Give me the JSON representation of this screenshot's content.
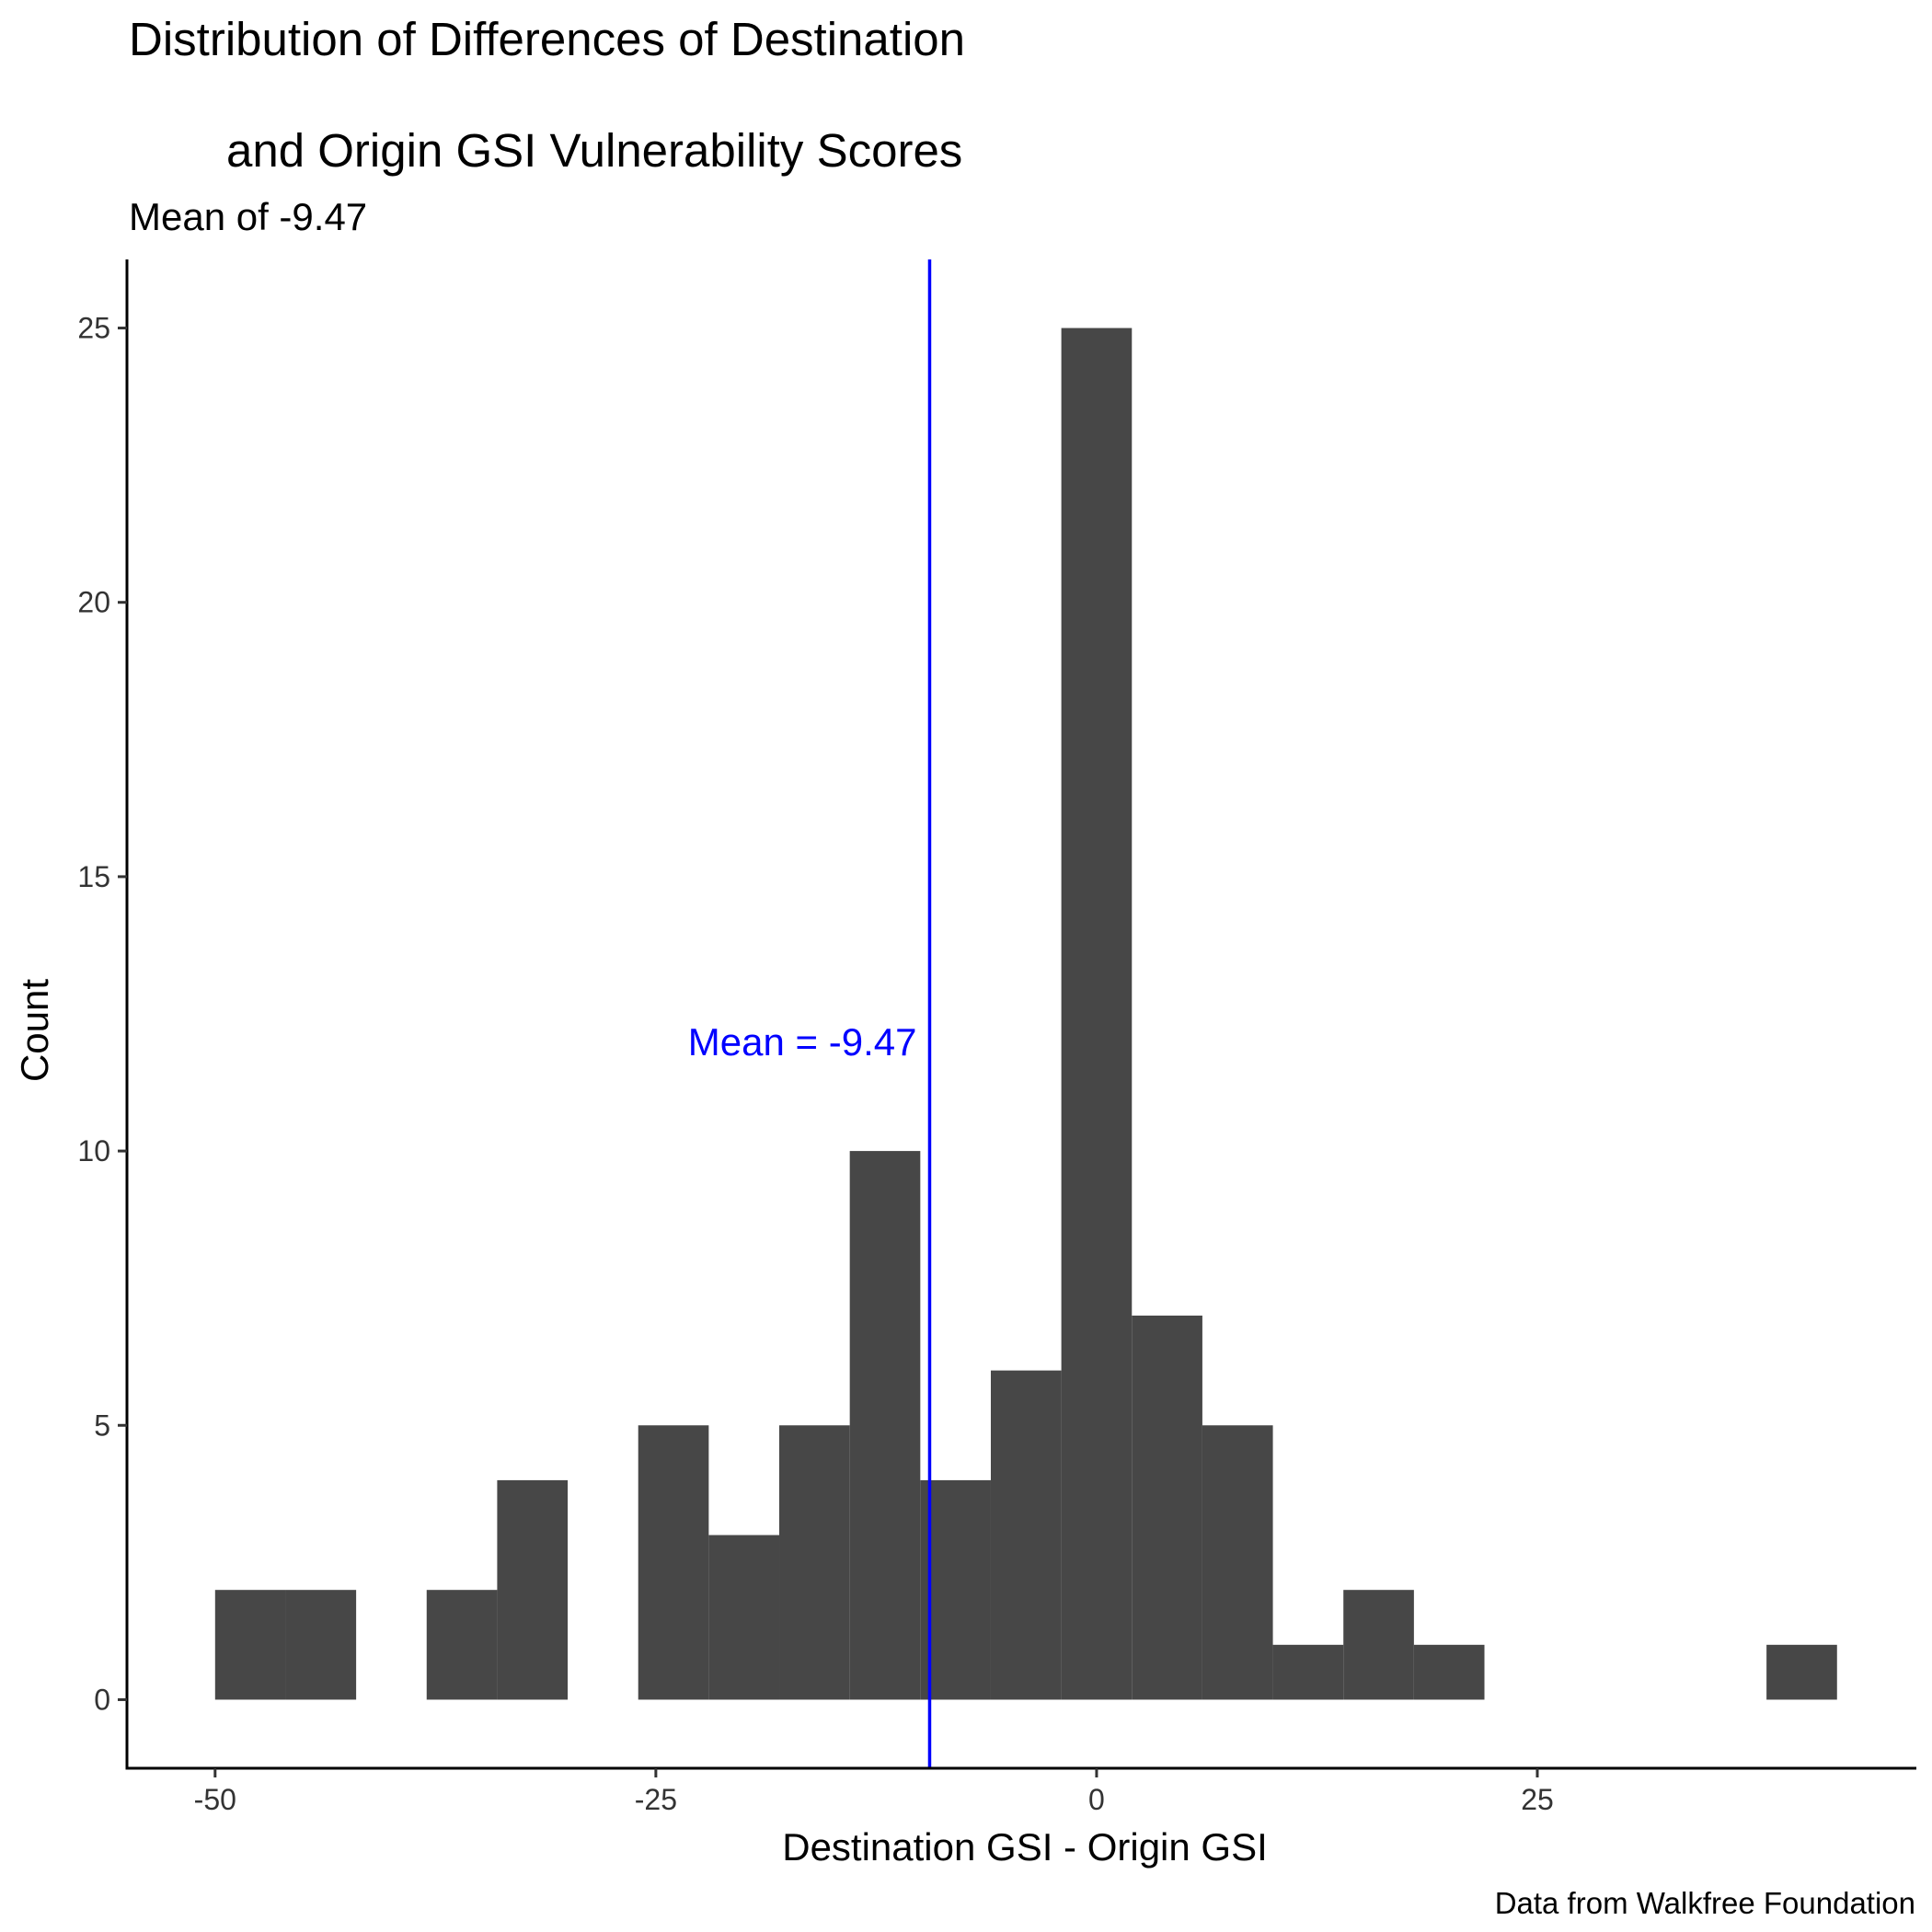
{
  "chart_data": {
    "type": "bar",
    "title_lines": [
      "Distribution of Differences of Destination",
      "and Origin GSI Vulnerability Scores"
    ],
    "subtitle": "Mean of -9.47",
    "xlabel": "Destination GSI - Origin GSI",
    "ylabel": "Count",
    "caption": "Data from Walkfree Foundation",
    "xlim": [
      -55,
      46.5
    ],
    "ylim": [
      -1.25,
      26.25
    ],
    "xticks": [
      -50,
      -25,
      0,
      25
    ],
    "xtick_labels": [
      "-50",
      "-25",
      "0",
      "25"
    ],
    "yticks": [
      0,
      5,
      10,
      15,
      20,
      25
    ],
    "ytick_labels": [
      "0",
      "5",
      "10",
      "15",
      "20",
      "25"
    ],
    "bin_width": 4,
    "bins_start": [
      -50,
      -46,
      -42,
      -38,
      -34,
      -30,
      -26,
      -22,
      -18,
      -14,
      -10,
      -6,
      -2,
      2,
      6,
      10,
      14,
      18,
      22,
      26,
      30,
      34,
      38
    ],
    "counts": [
      2,
      2,
      0,
      2,
      4,
      0,
      5,
      3,
      5,
      10,
      4,
      6,
      25,
      7,
      5,
      1,
      2,
      1,
      0,
      0,
      0,
      0,
      1
    ],
    "bar_color": "#474747",
    "mean": -9.47,
    "mean_line_color": "#0000ff",
    "mean_label": "Mean = -9.47",
    "mean_label_y": 12,
    "grid": false
  }
}
